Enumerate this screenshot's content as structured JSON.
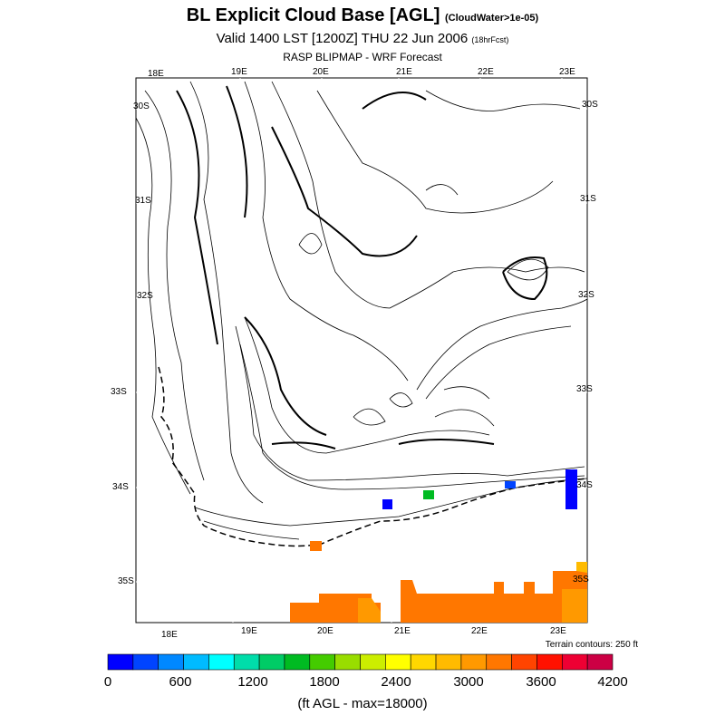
{
  "header": {
    "title": "BL Explicit Cloud Base [AGL]",
    "title_note": "(CloudWater>1e-05)",
    "valid": "Valid 1400 LST [1200Z] THU 22 Jun 2006",
    "valid_note": "(18hrFcst)",
    "subtitle": "RASP BLIPMAP - WRF Forecast"
  },
  "map": {
    "lon_labels_top": [
      "18E",
      "19E",
      "20E",
      "21E",
      "22E",
      "23E"
    ],
    "lon_labels_bottom": [
      "18E",
      "19E",
      "20E",
      "21E",
      "22E",
      "23E"
    ],
    "lat_labels_left": [
      "30S",
      "31S",
      "32S",
      "33S",
      "34S",
      "35S"
    ],
    "lat_labels_right": [
      "30S",
      "31S",
      "32S",
      "33S",
      "34S",
      "35S"
    ],
    "terrain_note": "Terrain contours: 250 ft"
  },
  "colorbar": {
    "colors": [
      "#0000ff",
      "#0044ff",
      "#0088ff",
      "#00bbff",
      "#00ffff",
      "#00ddaa",
      "#00cc66",
      "#00bb22",
      "#44cc00",
      "#99dd00",
      "#ccee00",
      "#ffff00",
      "#ffd700",
      "#ffbb00",
      "#ff9900",
      "#ff7700",
      "#ff4400",
      "#ff1100",
      "#ee0033",
      "#cc0044"
    ],
    "tick_labels": [
      "0",
      "600",
      "1200",
      "1800",
      "2400",
      "3000",
      "3600",
      "4200"
    ],
    "units": "(ft AGL - max=18000)"
  }
}
